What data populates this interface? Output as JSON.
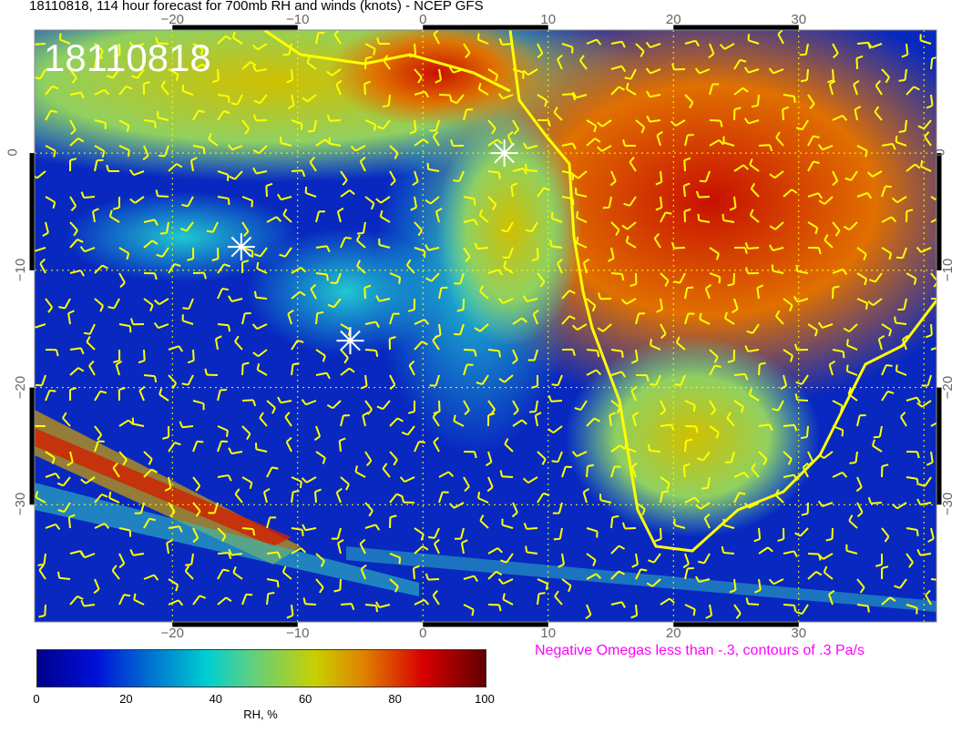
{
  "title": "18110818, 114 hour forecast for 700mb RH and winds (knots) - NCEP GFS",
  "stamp": "18110818",
  "map": {
    "lon_range": [
      -31,
      41
    ],
    "lat_range": [
      -40,
      10.5
    ],
    "lon_ticks": [
      "−20",
      "−10",
      "0",
      "10",
      "20",
      "30"
    ],
    "lat_ticks": [
      "0",
      "−10",
      "−20",
      "−30"
    ],
    "overlay_color": "#ffff00",
    "omega_color": "#ff00ff",
    "markers": [
      {
        "lon": 6.5,
        "lat": 0
      },
      {
        "lon": -14.5,
        "lat": -8
      },
      {
        "lon": -5.8,
        "lat": -16
      }
    ]
  },
  "omega_note": "Negative Omegas less than -.3, contours of .3 Pa/s",
  "colorbar": {
    "label": "RH, %",
    "ticks": [
      "0",
      "20",
      "40",
      "60",
      "80",
      "100"
    ],
    "range": [
      0,
      100
    ],
    "colors": [
      "#00008b",
      "#0010d8",
      "#00d0d0",
      "#c8d000",
      "#d80000",
      "#600000"
    ]
  }
}
